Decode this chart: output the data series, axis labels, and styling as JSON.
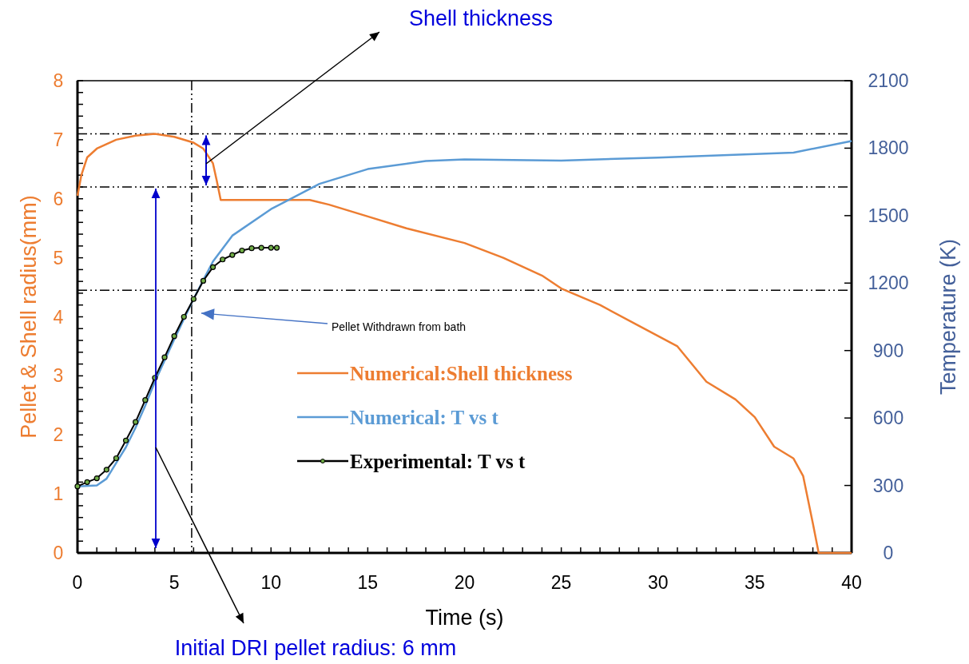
{
  "chart_data": {
    "type": "line",
    "xlabel": "Time (s)",
    "ylabel": "Pellet & Shell radius(mm)",
    "y2label": "Temperature (K)",
    "xlim": [
      0,
      40
    ],
    "ylim": [
      0,
      8
    ],
    "y2lim": [
      0,
      2100
    ],
    "xticks": [
      0,
      {
        "value": 1,
        "label": null
      },
      {
        "value": 2,
        "label": null
      },
      {
        "value": 3,
        "label": null
      },
      {
        "value": 4,
        "label": null
      },
      5,
      {
        "value": 6,
        "label": null
      },
      {
        "value": 7,
        "label": null
      },
      {
        "value": 8,
        "label": null
      },
      {
        "value": 9,
        "label": null
      },
      10,
      {
        "value": 11,
        "label": null
      },
      {
        "value": 12,
        "label": null
      },
      {
        "value": 13,
        "label": null
      },
      {
        "value": 14,
        "label": null
      },
      15,
      {
        "value": 16,
        "label": null
      },
      {
        "value": 17,
        "label": null
      },
      {
        "value": 18,
        "label": null
      },
      {
        "value": 19,
        "label": null
      },
      20,
      {
        "value": 21,
        "label": null
      },
      {
        "value": 22,
        "label": null
      },
      {
        "value": 23,
        "label": null
      },
      {
        "value": 24,
        "label": null
      },
      25,
      {
        "value": 26,
        "label": null
      },
      {
        "value": 27,
        "label": null
      },
      {
        "value": 28,
        "label": null
      },
      {
        "value": 29,
        "label": null
      },
      30,
      {
        "value": 31,
        "label": null
      },
      {
        "value": 32,
        "label": null
      },
      {
        "value": 33,
        "label": null
      },
      {
        "value": 34,
        "label": null
      },
      35,
      {
        "value": 36,
        "label": null
      },
      {
        "value": 37,
        "label": null
      },
      {
        "value": 38,
        "label": null
      },
      {
        "value": 39,
        "label": null
      },
      40
    ],
    "yticks": [
      0,
      {
        "value": 0.2,
        "label": null
      },
      {
        "value": 0.4,
        "label": null
      },
      {
        "value": 0.6,
        "label": null
      },
      {
        "value": 0.8,
        "label": null
      },
      1,
      {
        "value": 1.2,
        "label": null
      },
      {
        "value": 1.4,
        "label": null
      },
      {
        "value": 1.6,
        "label": null
      },
      {
        "value": 1.8,
        "label": null
      },
      2,
      {
        "value": 2.2,
        "label": null
      },
      {
        "value": 2.4,
        "label": null
      },
      {
        "value": 2.6,
        "label": null
      },
      {
        "value": 2.8,
        "label": null
      },
      3,
      {
        "value": 3.2,
        "label": null
      },
      {
        "value": 3.4,
        "label": null
      },
      {
        "value": 3.6,
        "label": null
      },
      {
        "value": 3.8,
        "label": null
      },
      4,
      {
        "value": 4.2,
        "label": null
      },
      {
        "value": 4.4,
        "label": null
      },
      {
        "value": 4.6,
        "label": null
      },
      {
        "value": 4.8,
        "label": null
      },
      5,
      {
        "value": 5.2,
        "label": null
      },
      {
        "value": 5.4,
        "label": null
      },
      {
        "value": 5.6,
        "label": null
      },
      {
        "value": 5.8,
        "label": null
      },
      6,
      {
        "value": 6.2,
        "label": null
      },
      {
        "value": 6.4,
        "label": null
      },
      {
        "value": 6.6,
        "label": null
      },
      {
        "value": 6.8,
        "label": null
      },
      7,
      {
        "value": 7.2,
        "label": null
      },
      {
        "value": 7.4,
        "label": null
      },
      {
        "value": 7.6,
        "label": null
      },
      {
        "value": 7.8,
        "label": null
      },
      8
    ],
    "y2ticks": [
      0,
      300,
      600,
      900,
      1200,
      1500,
      1800,
      2100
    ],
    "legend": "center",
    "grid": false,
    "series": [
      {
        "name": "Numerical:Shell thickness",
        "color": "#ed7d31",
        "axis": "y",
        "marker": "none",
        "x": [
          0,
          0.2,
          0.5,
          1,
          2,
          3,
          4,
          5,
          6,
          6.5,
          7,
          7.2,
          7.4,
          12,
          13,
          15,
          17,
          20,
          22,
          24,
          25,
          27,
          29,
          31,
          32.5,
          34,
          35,
          36,
          37,
          37.5,
          38,
          38.3,
          40
        ],
        "values": [
          6.05,
          6.4,
          6.7,
          6.85,
          7.0,
          7.07,
          7.1,
          7.05,
          6.95,
          6.85,
          6.6,
          6.3,
          5.98,
          5.98,
          5.9,
          5.7,
          5.5,
          5.25,
          5.0,
          4.7,
          4.48,
          4.2,
          3.85,
          3.5,
          2.9,
          2.6,
          2.3,
          1.8,
          1.6,
          1.3,
          0.5,
          0,
          0
        ]
      },
      {
        "name": "Numerical: T vs t",
        "color": "#5b9bd5",
        "axis": "y2",
        "marker": "none",
        "x": [
          0,
          1,
          1.5,
          2,
          2.5,
          3,
          3.5,
          4,
          5,
          6,
          7,
          8,
          10,
          12.5,
          15,
          18,
          20,
          25,
          30,
          37,
          40
        ],
        "values": [
          296,
          300,
          330,
          400,
          470,
          557,
          655,
          761,
          950,
          1130,
          1296,
          1411,
          1529,
          1641,
          1707,
          1743,
          1750,
          1745,
          1758,
          1780,
          1832
        ]
      },
      {
        "name": "Experimental: T vs t",
        "color": "#000000",
        "axis": "y2",
        "marker": "circle",
        "x": [
          0,
          0.5,
          1,
          1.5,
          2,
          2.5,
          3,
          3.5,
          4,
          4.5,
          5,
          5.5,
          6,
          6.5,
          7,
          7.5,
          8,
          8.5,
          9,
          9.5,
          10,
          10.3
        ],
        "values": [
          296,
          315,
          332,
          370,
          421,
          500,
          582,
          680,
          779,
          870,
          964,
          1050,
          1129,
          1210,
          1271,
          1305,
          1325,
          1345,
          1355,
          1357,
          1357,
          1357
        ]
      }
    ],
    "ref_lines": [
      {
        "axis": "y",
        "value": 7.1,
        "color": "#000000",
        "line_style": "dashed"
      },
      {
        "axis": "y",
        "value": 6.2,
        "color": "#000000",
        "line_style": "dashed"
      },
      {
        "axis": "y",
        "value": 4.45,
        "color": "#000000",
        "line_style": "dashed"
      },
      {
        "axis": "x",
        "value": 5.9,
        "color": "#000000",
        "line_style": "dashed"
      }
    ],
    "annotations": [
      "Shell thickness",
      "Initial DRI pellet radius: 6 mm",
      "Pellet Withdrawn from bath"
    ]
  }
}
